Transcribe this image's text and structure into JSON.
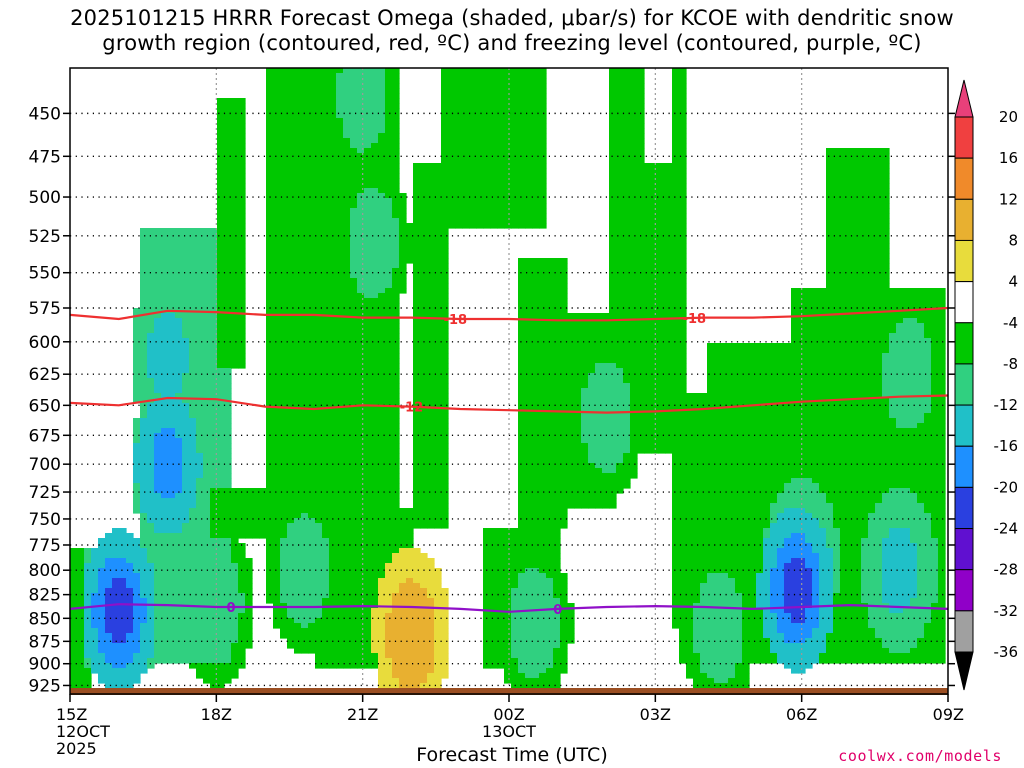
{
  "title": {
    "line1": "2025101215 HRRR Forecast Omega (shaded, μbar/s) for KCOE with dendritic snow",
    "line2": "growth region (contoured, red, ºC) and freezing level (contoured, purple, ºC)"
  },
  "xlabel": "Forecast Time (UTC)",
  "credit": "coolwx.com/models",
  "chart_data": {
    "type": "heatmap",
    "title": "2025101215 HRRR Forecast Omega (shaded, μbar/s) for KCOE with dendritic snow growth region (contoured, red, ºC) and freezing level (contoured, purple, ºC)",
    "xlabel": "Forecast Time (UTC)",
    "ylabel": "",
    "x_range_hours": [
      0,
      18
    ],
    "y_range_hpa": [
      935,
      425
    ],
    "y_scale": "log-pressure",
    "grid": true,
    "x_ticks": [
      {
        "hour": 0,
        "lines": [
          "15Z",
          "12OCT",
          "2025"
        ]
      },
      {
        "hour": 3,
        "lines": [
          "18Z"
        ]
      },
      {
        "hour": 6,
        "lines": [
          "21Z"
        ]
      },
      {
        "hour": 9,
        "lines": [
          "00Z",
          "13OCT"
        ]
      },
      {
        "hour": 12,
        "lines": [
          "03Z"
        ]
      },
      {
        "hour": 15,
        "lines": [
          "06Z"
        ]
      },
      {
        "hour": 18,
        "lines": [
          "09Z"
        ]
      }
    ],
    "y_ticks": [
      450,
      475,
      500,
      525,
      550,
      575,
      600,
      625,
      650,
      675,
      700,
      725,
      750,
      775,
      800,
      825,
      850,
      875,
      900,
      925
    ],
    "colorbar": {
      "labels": [
        20,
        16,
        12,
        8,
        4,
        -4,
        -8,
        -12,
        -16,
        -20,
        -24,
        -28,
        -32,
        -36
      ],
      "colors": [
        "#e8407a",
        "#f04040",
        "#f08a2a",
        "#e8b030",
        "#e8dc3c",
        "#ffffff",
        "#00c800",
        "#30d080",
        "#20c0c8",
        "#1e90ff",
        "#2a40e0",
        "#6010d0",
        "#9000c8",
        "#a0a0a0",
        "#000000"
      ]
    },
    "contours": [
      {
        "label": "-18",
        "color": "#ee3030",
        "points": [
          [
            0,
            580
          ],
          [
            1,
            583
          ],
          [
            2,
            577
          ],
          [
            3,
            578
          ],
          [
            4,
            580
          ],
          [
            5,
            580
          ],
          [
            6,
            582
          ],
          [
            7,
            582
          ],
          [
            8,
            583
          ],
          [
            9,
            583
          ],
          [
            10,
            584
          ],
          [
            11,
            584
          ],
          [
            12,
            583
          ],
          [
            13,
            582
          ],
          [
            14,
            582
          ],
          [
            15,
            581
          ],
          [
            16,
            579
          ],
          [
            17,
            577
          ],
          [
            18,
            575
          ]
        ]
      },
      {
        "label": "-12",
        "color": "#ee3030",
        "points": [
          [
            0,
            648
          ],
          [
            1,
            650
          ],
          [
            2,
            644
          ],
          [
            3,
            645
          ],
          [
            4,
            651
          ],
          [
            5,
            653
          ],
          [
            6,
            650
          ],
          [
            7,
            651
          ],
          [
            8,
            653
          ],
          [
            9,
            654
          ],
          [
            10,
            655
          ],
          [
            11,
            656
          ],
          [
            12,
            655
          ],
          [
            13,
            653
          ],
          [
            14,
            650
          ],
          [
            15,
            647
          ],
          [
            16,
            645
          ],
          [
            17,
            643
          ],
          [
            18,
            642
          ]
        ]
      },
      {
        "label": "0",
        "color": "#9010c8",
        "points": [
          [
            0,
            840
          ],
          [
            1,
            835
          ],
          [
            2,
            836
          ],
          [
            3,
            838
          ],
          [
            4,
            838
          ],
          [
            5,
            838
          ],
          [
            6,
            837
          ],
          [
            7,
            838
          ],
          [
            8,
            840
          ],
          [
            9,
            843
          ],
          [
            10,
            840
          ],
          [
            11,
            838
          ],
          [
            12,
            837
          ],
          [
            13,
            838
          ],
          [
            14,
            840
          ],
          [
            15,
            838
          ],
          [
            16,
            836
          ],
          [
            17,
            838
          ],
          [
            18,
            840
          ]
        ]
      }
    ],
    "cells": [
      {
        "hour": 1.0,
        "p": 842,
        "value": -24
      },
      {
        "hour": 2.0,
        "p": 700,
        "value": -20
      },
      {
        "hour": 2.0,
        "p": 610,
        "value": -16
      },
      {
        "hour": 3.0,
        "p": 835,
        "value": -12
      },
      {
        "hour": 4.8,
        "p": 800,
        "value": -12
      },
      {
        "hour": 6.2,
        "p": 530,
        "value": -12
      },
      {
        "hour": 6.0,
        "p": 440,
        "value": -12
      },
      {
        "hour": 2.0,
        "p": 450,
        "value": 4
      },
      {
        "hour": 7.0,
        "p": 862,
        "value": 8
      },
      {
        "hour": 7.0,
        "p": 868,
        "value": 12
      },
      {
        "hour": 9.5,
        "p": 855,
        "value": -12
      },
      {
        "hour": 11.0,
        "p": 660,
        "value": -12
      },
      {
        "hour": 13.3,
        "p": 860,
        "value": -12
      },
      {
        "hour": 14.9,
        "p": 820,
        "value": -24
      },
      {
        "hour": 15.0,
        "p": 790,
        "value": -16
      },
      {
        "hour": 17.0,
        "p": 800,
        "value": -16
      },
      {
        "hour": 17.2,
        "p": 625,
        "value": -12
      },
      {
        "hour": 17.8,
        "p": 450,
        "value": 4
      }
    ]
  }
}
